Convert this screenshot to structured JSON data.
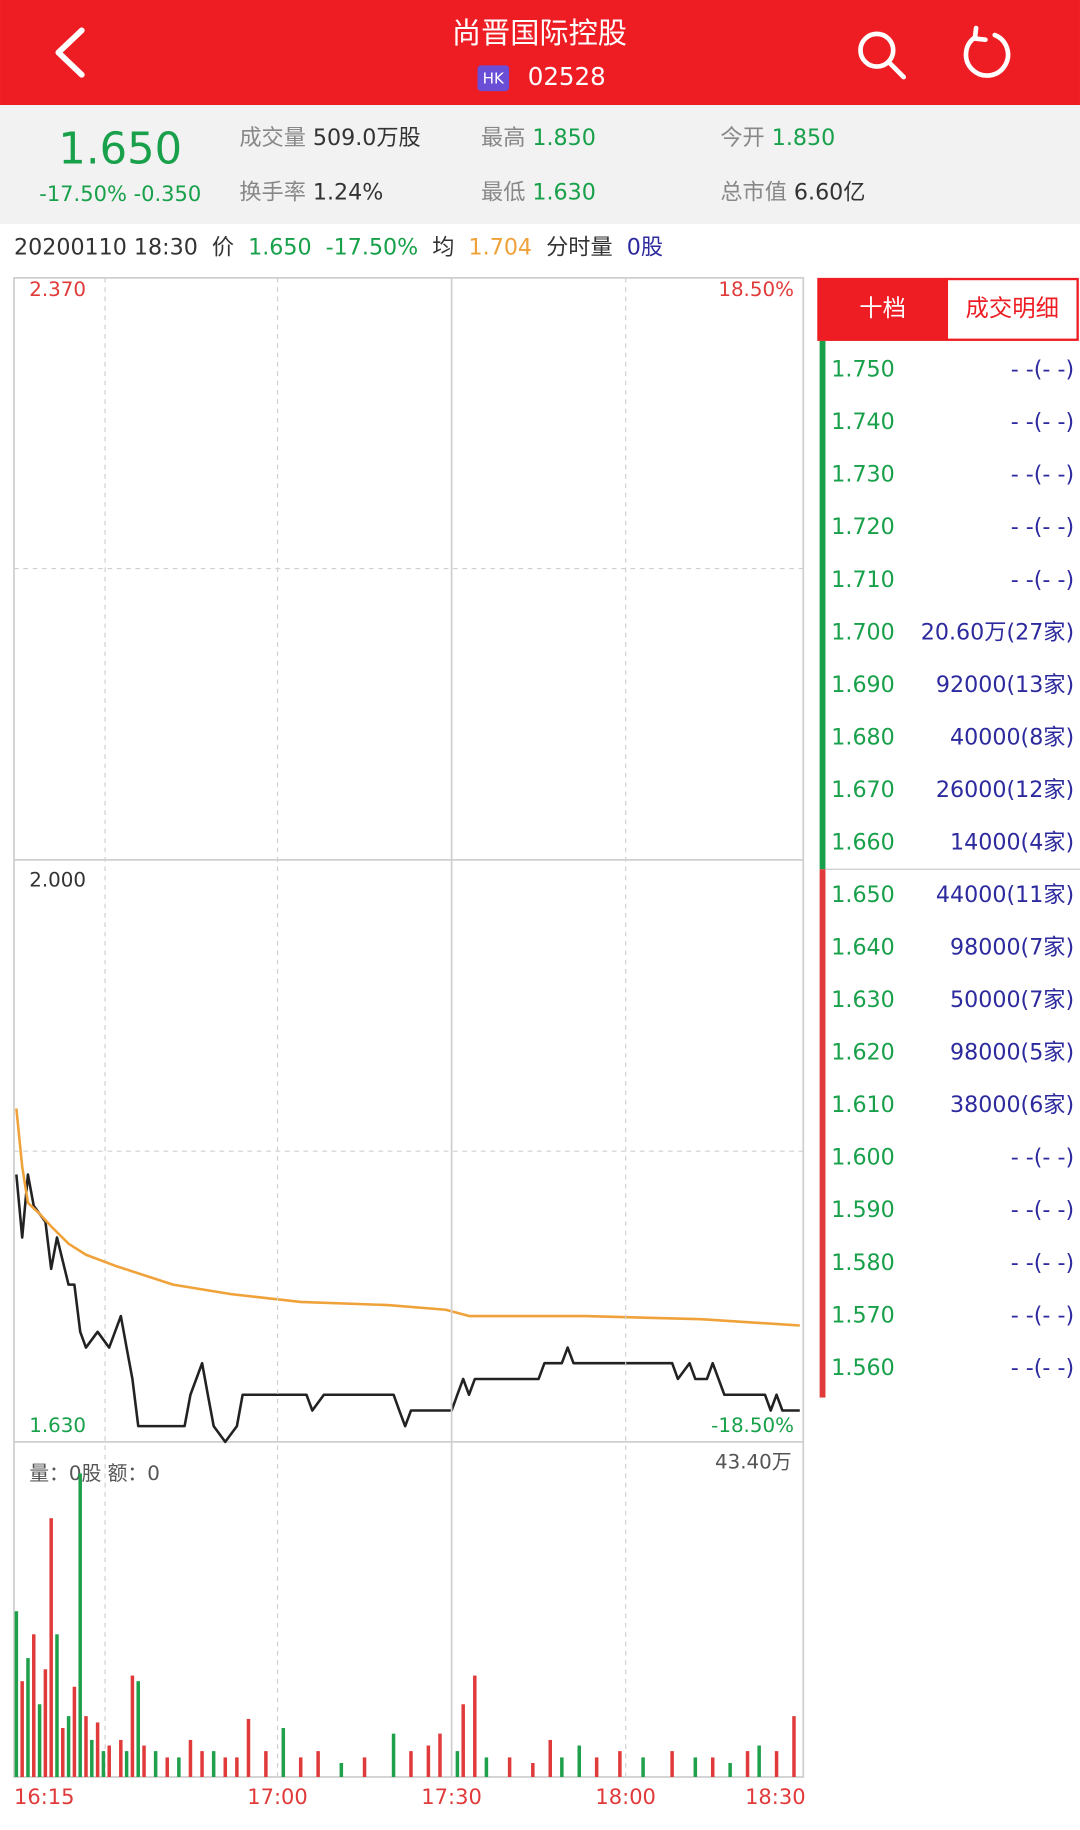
{
  "header": {
    "title": "尚晋国际控股",
    "market": "HK",
    "code": "02528"
  },
  "quote": {
    "price": "1.650",
    "change": "-17.50% -0.350",
    "fields": [
      {
        "label": "成交量",
        "value": "509.0万股",
        "color": "#333333"
      },
      {
        "label": "换手率",
        "value": "1.24%",
        "color": "#333333"
      },
      {
        "label": "最高",
        "value": "1.850",
        "color": "#18a04a"
      },
      {
        "label": "最低",
        "value": "1.630",
        "color": "#18a04a"
      },
      {
        "label": "今开",
        "value": "1.850",
        "color": "#18a04a"
      },
      {
        "label": "总市值",
        "value": "6.60亿",
        "color": "#333333"
      }
    ]
  },
  "info_line": {
    "datetime": "20200110 18:30",
    "price_label": "价",
    "price": "1.650",
    "change": "-17.50%",
    "avg_label": "均",
    "avg": "1.704",
    "vol_label": "分时量",
    "vol": "0股"
  },
  "chart_data": [
    {
      "type": "line",
      "xlim": [
        "16:15",
        "18:30"
      ],
      "ylim": [
        1.63,
        2.37
      ],
      "yticks": [
        {
          "value": 2.37,
          "label": "2.370"
        },
        {
          "value": 2.0,
          "label": "2.000"
        },
        {
          "value": 1.63,
          "label": "1.630"
        }
      ],
      "ytick_colors": [
        "#e03a3a",
        "#333333",
        "#18a04a"
      ],
      "y2lim": [
        -18.5,
        18.5
      ],
      "y2ticks": [
        {
          "value": 18.5,
          "label": "18.50%"
        },
        {
          "value": -18.5,
          "label": "-18.50%"
        }
      ],
      "y2tick_colors": [
        "#e03a3a",
        "#18a04a"
      ],
      "series": [
        {
          "color": "#222222",
          "x": [
            "16:15",
            "16:16",
            "16:17",
            "16:18",
            "16:20",
            "16:21",
            "16:22",
            "16:24",
            "16:25",
            "16:26",
            "16:27",
            "16:29",
            "16:31",
            "16:32",
            "16:33",
            "16:34",
            "16:35",
            "16:36",
            "16:44",
            "16:45",
            "16:47",
            "16:48",
            "16:49",
            "16:51",
            "16:53",
            "16:54",
            "16:59",
            "17:05",
            "17:06",
            "17:08",
            "17:20",
            "17:21",
            "17:22",
            "17:23",
            "17:30",
            "17:31",
            "17:32",
            "17:33",
            "17:34",
            "17:45",
            "17:46",
            "17:49",
            "17:50",
            "17:51",
            "18:08",
            "18:09",
            "18:11",
            "18:12",
            "18:14",
            "18:15",
            "18:16",
            "18:17",
            "18:24",
            "18:25",
            "18:26",
            "18:27",
            "18:30"
          ],
          "values": [
            1.8,
            1.76,
            1.8,
            1.78,
            1.77,
            1.74,
            1.76,
            1.73,
            1.73,
            1.7,
            1.69,
            1.7,
            1.69,
            1.7,
            1.71,
            1.69,
            1.67,
            1.64,
            1.64,
            1.66,
            1.68,
            1.66,
            1.64,
            1.63,
            1.64,
            1.66,
            1.66,
            1.66,
            1.65,
            1.66,
            1.66,
            1.65,
            1.64,
            1.65,
            1.65,
            1.66,
            1.67,
            1.66,
            1.67,
            1.67,
            1.68,
            1.68,
            1.69,
            1.68,
            1.68,
            1.67,
            1.68,
            1.67,
            1.67,
            1.68,
            1.67,
            1.66,
            1.66,
            1.65,
            1.66,
            1.65,
            1.65
          ]
        },
        {
          "color": "#f0a23a",
          "x": [
            "16:15",
            "16:16",
            "16:17",
            "16:19",
            "16:21",
            "16:24",
            "16:27",
            "16:32",
            "16:42",
            "16:52",
            "17:04",
            "17:19",
            "17:29",
            "17:33",
            "17:53",
            "18:13",
            "18:30"
          ],
          "values": [
            1.842,
            1.805,
            1.782,
            1.775,
            1.767,
            1.756,
            1.749,
            1.742,
            1.73,
            1.724,
            1.719,
            1.717,
            1.714,
            1.71,
            1.71,
            1.708,
            1.704
          ]
        }
      ]
    },
    {
      "type": "bar",
      "label": "量：0股 额：0",
      "xlim": [
        "16:15",
        "18:30"
      ],
      "xticks": [
        "16:15",
        "17:00",
        "17:30",
        "18:00",
        "18:30"
      ],
      "ylim": [
        0,
        434000
      ],
      "yticks": [
        {
          "value": 434000,
          "label": "43.40万"
        }
      ],
      "x": [
        "16:15",
        "16:16",
        "16:17",
        "16:18",
        "16:19",
        "16:20",
        "16:21",
        "16:22",
        "16:23",
        "16:24",
        "16:25",
        "16:26",
        "16:27",
        "16:28",
        "16:29",
        "16:30",
        "16:31",
        "16:33",
        "16:34",
        "16:35",
        "16:36",
        "16:37",
        "16:39",
        "16:41",
        "16:43",
        "16:45",
        "16:47",
        "16:49",
        "16:51",
        "16:53",
        "16:55",
        "16:58",
        "17:01",
        "17:04",
        "17:07",
        "17:11",
        "17:15",
        "17:20",
        "17:23",
        "17:26",
        "17:28",
        "17:31",
        "17:32",
        "17:34",
        "17:36",
        "17:40",
        "17:44",
        "17:47",
        "17:49",
        "17:52",
        "17:55",
        "17:59",
        "18:03",
        "18:08",
        "18:12",
        "18:15",
        "18:18",
        "18:21",
        "18:23",
        "18:26",
        "18:29"
      ],
      "values": [
        237000,
        137000,
        170000,
        204000,
        104000,
        154000,
        370000,
        204000,
        70000,
        87000,
        129000,
        434000,
        87000,
        53000,
        78000,
        37000,
        45000,
        53000,
        37000,
        145000,
        137000,
        45000,
        37000,
        28000,
        28000,
        53000,
        37000,
        37000,
        28000,
        28000,
        83000,
        37000,
        70000,
        28000,
        37000,
        20000,
        28000,
        62000,
        37000,
        45000,
        62000,
        37000,
        104000,
        145000,
        28000,
        28000,
        20000,
        53000,
        28000,
        45000,
        28000,
        37000,
        28000,
        37000,
        28000,
        28000,
        20000,
        37000,
        45000,
        37000,
        87000
      ],
      "colors": [
        "#1fa04a",
        "#e03a3a",
        "#1fa04a",
        "#e03a3a",
        "#1fa04a",
        "#e03a3a",
        "#e03a3a",
        "#1fa04a",
        "#e03a3a",
        "#1fa04a",
        "#e03a3a",
        "#1fa04a",
        "#e03a3a",
        "#1fa04a",
        "#e03a3a",
        "#1fa04a",
        "#e03a3a",
        "#e03a3a",
        "#1fa04a",
        "#e03a3a",
        "#1fa04a",
        "#e03a3a",
        "#1fa04a",
        "#e03a3a",
        "#1fa04a",
        "#e03a3a",
        "#e03a3a",
        "#1fa04a",
        "#e03a3a",
        "#e03a3a",
        "#e03a3a",
        "#e03a3a",
        "#1fa04a",
        "#e03a3a",
        "#e03a3a",
        "#1fa04a",
        "#e03a3a",
        "#1fa04a",
        "#e03a3a",
        "#e03a3a",
        "#e03a3a",
        "#1fa04a",
        "#e03a3a",
        "#e03a3a",
        "#1fa04a",
        "#e03a3a",
        "#e03a3a",
        "#e03a3a",
        "#1fa04a",
        "#1fa04a",
        "#e03a3a",
        "#e03a3a",
        "#1fa04a",
        "#e03a3a",
        "#1fa04a",
        "#e03a3a",
        "#1fa04a",
        "#e03a3a",
        "#1fa04a",
        "#e03a3a",
        "#e03a3a"
      ]
    }
  ],
  "order_book": {
    "tabs": [
      "十档",
      "成交明细"
    ],
    "rows": [
      {
        "price": "1.750",
        "volume": "- -(- -)"
      },
      {
        "price": "1.740",
        "volume": "- -(- -)"
      },
      {
        "price": "1.730",
        "volume": "- -(- -)"
      },
      {
        "price": "1.720",
        "volume": "- -(- -)"
      },
      {
        "price": "1.710",
        "volume": "- -(- -)"
      },
      {
        "price": "1.700",
        "volume": "20.60万(27家)"
      },
      {
        "price": "1.690",
        "volume": "92000(13家)"
      },
      {
        "price": "1.680",
        "volume": "40000(8家)"
      },
      {
        "price": "1.670",
        "volume": "26000(12家)"
      },
      {
        "price": "1.660",
        "volume": "14000(4家)"
      },
      {
        "price": "1.650",
        "volume": "44000(11家)"
      },
      {
        "price": "1.640",
        "volume": "98000(7家)"
      },
      {
        "price": "1.630",
        "volume": "50000(7家)"
      },
      {
        "price": "1.620",
        "volume": "98000(5家)"
      },
      {
        "price": "1.610",
        "volume": "38000(6家)"
      },
      {
        "price": "1.600",
        "volume": "- -(- -)"
      },
      {
        "price": "1.590",
        "volume": "- -(- -)"
      },
      {
        "price": "1.580",
        "volume": "- -(- -)"
      },
      {
        "price": "1.570",
        "volume": "- -(- -)"
      },
      {
        "price": "1.560",
        "volume": "- -(- -)"
      }
    ]
  }
}
